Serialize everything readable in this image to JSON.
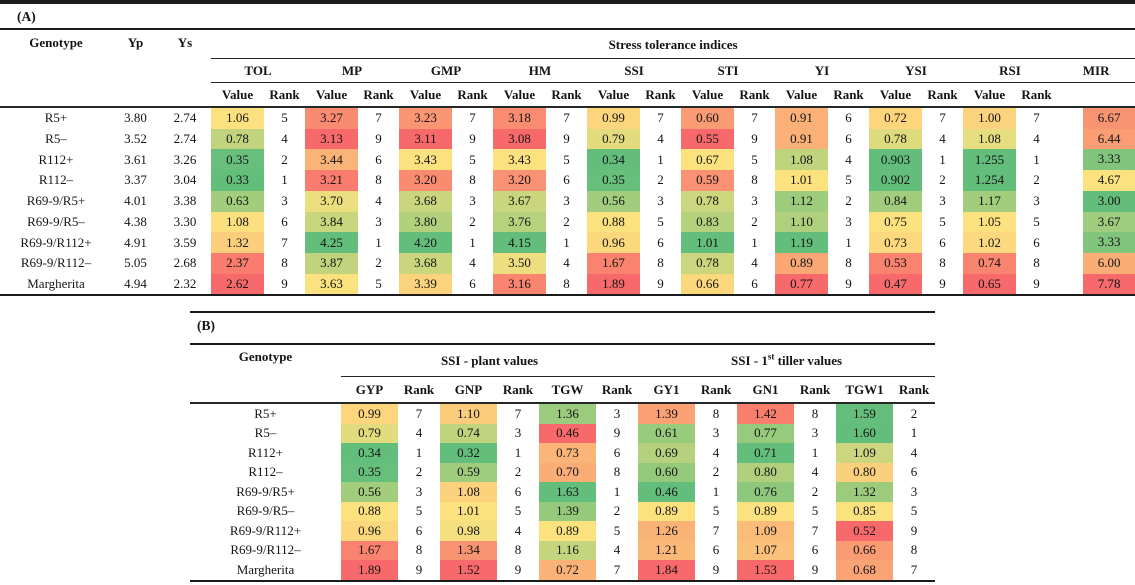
{
  "palette": {
    "good": "#63be7b",
    "mid": "#fce27f",
    "bad": "#f8696b",
    "rule": "#1b1b1b"
  },
  "panelA": {
    "label": "(A)",
    "headers": {
      "genotype": "Genotype",
      "yp": "Yp",
      "ys": "Ys",
      "span": "Stress tolerance indices",
      "value": "Value",
      "rank": "Rank"
    },
    "indices": [
      {
        "key": "TOL",
        "dir": "low"
      },
      {
        "key": "MP",
        "dir": "high"
      },
      {
        "key": "GMP",
        "dir": "high"
      },
      {
        "key": "HM",
        "dir": "high"
      },
      {
        "key": "SSI",
        "dir": "low"
      },
      {
        "key": "STI",
        "dir": "high"
      },
      {
        "key": "YI",
        "dir": "high"
      },
      {
        "key": "YSI",
        "dir": "high"
      },
      {
        "key": "RSI",
        "dir": "high"
      }
    ],
    "mir": {
      "key": "MIR",
      "dir": "low"
    },
    "rows": [
      {
        "genotype": "R5+",
        "yp": "3.80",
        "ys": "2.74",
        "vals": [
          [
            "1.06",
            "5"
          ],
          [
            "3.27",
            "7"
          ],
          [
            "3.23",
            "7"
          ],
          [
            "3.18",
            "7"
          ],
          [
            "0.99",
            "7"
          ],
          [
            "0.60",
            "7"
          ],
          [
            "0.91",
            "6"
          ],
          [
            "0.72",
            "7"
          ],
          [
            "1.00",
            "7"
          ]
        ],
        "mir": "6.67"
      },
      {
        "genotype": "R5–",
        "yp": "3.52",
        "ys": "2.74",
        "vals": [
          [
            "0.78",
            "4"
          ],
          [
            "3.13",
            "9"
          ],
          [
            "3.11",
            "9"
          ],
          [
            "3.08",
            "9"
          ],
          [
            "0.79",
            "4"
          ],
          [
            "0.55",
            "9"
          ],
          [
            "0.91",
            "6"
          ],
          [
            "0.78",
            "4"
          ],
          [
            "1.08",
            "4"
          ]
        ],
        "mir": "6.44"
      },
      {
        "genotype": "R112+",
        "yp": "3.61",
        "ys": "3.26",
        "vals": [
          [
            "0.35",
            "2"
          ],
          [
            "3.44",
            "6"
          ],
          [
            "3.43",
            "5"
          ],
          [
            "3.43",
            "5"
          ],
          [
            "0.34",
            "1"
          ],
          [
            "0.67",
            "5"
          ],
          [
            "1.08",
            "4"
          ],
          [
            "0.903",
            "1"
          ],
          [
            "1.255",
            "1"
          ]
        ],
        "mir": "3.33"
      },
      {
        "genotype": "R112–",
        "yp": "3.37",
        "ys": "3.04",
        "vals": [
          [
            "0.33",
            "1"
          ],
          [
            "3.21",
            "8"
          ],
          [
            "3.20",
            "8"
          ],
          [
            "3.20",
            "6"
          ],
          [
            "0.35",
            "2"
          ],
          [
            "0.59",
            "8"
          ],
          [
            "1.01",
            "5"
          ],
          [
            "0.902",
            "2"
          ],
          [
            "1.254",
            "2"
          ]
        ],
        "mir": "4.67"
      },
      {
        "genotype": "R69-9/R5+",
        "yp": "4.01",
        "ys": "3.38",
        "vals": [
          [
            "0.63",
            "3"
          ],
          [
            "3.70",
            "4"
          ],
          [
            "3.68",
            "3"
          ],
          [
            "3.67",
            "3"
          ],
          [
            "0.56",
            "3"
          ],
          [
            "0.78",
            "3"
          ],
          [
            "1.12",
            "2"
          ],
          [
            "0.84",
            "3"
          ],
          [
            "1.17",
            "3"
          ]
        ],
        "mir": "3.00"
      },
      {
        "genotype": "R69-9/R5–",
        "yp": "4.38",
        "ys": "3.30",
        "vals": [
          [
            "1.08",
            "6"
          ],
          [
            "3.84",
            "3"
          ],
          [
            "3.80",
            "2"
          ],
          [
            "3.76",
            "2"
          ],
          [
            "0.88",
            "5"
          ],
          [
            "0.83",
            "2"
          ],
          [
            "1.10",
            "3"
          ],
          [
            "0.75",
            "5"
          ],
          [
            "1.05",
            "5"
          ]
        ],
        "mir": "3.67"
      },
      {
        "genotype": "R69-9/R112+",
        "yp": "4.91",
        "ys": "3.59",
        "vals": [
          [
            "1.32",
            "7"
          ],
          [
            "4.25",
            "1"
          ],
          [
            "4.20",
            "1"
          ],
          [
            "4.15",
            "1"
          ],
          [
            "0.96",
            "6"
          ],
          [
            "1.01",
            "1"
          ],
          [
            "1.19",
            "1"
          ],
          [
            "0.73",
            "6"
          ],
          [
            "1.02",
            "6"
          ]
        ],
        "mir": "3.33"
      },
      {
        "genotype": "R69-9/R112–",
        "yp": "5.05",
        "ys": "2.68",
        "vals": [
          [
            "2.37",
            "8"
          ],
          [
            "3.87",
            "2"
          ],
          [
            "3.68",
            "4"
          ],
          [
            "3.50",
            "4"
          ],
          [
            "1.67",
            "8"
          ],
          [
            "0.78",
            "4"
          ],
          [
            "0.89",
            "8"
          ],
          [
            "0.53",
            "8"
          ],
          [
            "0.74",
            "8"
          ]
        ],
        "mir": "6.00"
      },
      {
        "genotype": "Margherita",
        "yp": "4.94",
        "ys": "2.32",
        "vals": [
          [
            "2.62",
            "9"
          ],
          [
            "3.63",
            "5"
          ],
          [
            "3.39",
            "6"
          ],
          [
            "3.16",
            "8"
          ],
          [
            "1.89",
            "9"
          ],
          [
            "0.66",
            "6"
          ],
          [
            "0.77",
            "9"
          ],
          [
            "0.47",
            "9"
          ],
          [
            "0.65",
            "9"
          ]
        ],
        "mir": "7.78"
      }
    ]
  },
  "panelB": {
    "label": "(B)",
    "headers": {
      "genotype": "Genotype",
      "group1": "SSI - plant values",
      "group2_pre": "SSI - 1",
      "group2_sup": "st",
      "group2_post": " tiller values",
      "rank": "Rank"
    },
    "columns": [
      {
        "key": "GYP",
        "dir": "low"
      },
      {
        "key": "GNP",
        "dir": "low"
      },
      {
        "key": "TGW",
        "dir": "high"
      },
      {
        "key": "GY1",
        "dir": "low"
      },
      {
        "key": "GN1",
        "dir": "low"
      },
      {
        "key": "TGW1",
        "dir": "high"
      }
    ],
    "rows": [
      {
        "genotype": "R5+",
        "vals": [
          [
            "0.99",
            "7"
          ],
          [
            "1.10",
            "7"
          ],
          [
            "1.36",
            "3"
          ],
          [
            "1.39",
            "8"
          ],
          [
            "1.42",
            "8"
          ],
          [
            "1.59",
            "2"
          ]
        ]
      },
      {
        "genotype": "R5–",
        "vals": [
          [
            "0.79",
            "4"
          ],
          [
            "0.74",
            "3"
          ],
          [
            "0.46",
            "9"
          ],
          [
            "0.61",
            "3"
          ],
          [
            "0.77",
            "3"
          ],
          [
            "1.60",
            "1"
          ]
        ]
      },
      {
        "genotype": "R112+",
        "vals": [
          [
            "0.34",
            "1"
          ],
          [
            "0.32",
            "1"
          ],
          [
            "0.73",
            "6"
          ],
          [
            "0.69",
            "4"
          ],
          [
            "0.71",
            "1"
          ],
          [
            "1.09",
            "4"
          ]
        ]
      },
      {
        "genotype": "R112–",
        "vals": [
          [
            "0.35",
            "2"
          ],
          [
            "0.59",
            "2"
          ],
          [
            "0.70",
            "8"
          ],
          [
            "0.60",
            "2"
          ],
          [
            "0.80",
            "4"
          ],
          [
            "0.80",
            "6"
          ]
        ]
      },
      {
        "genotype": "R69-9/R5+",
        "vals": [
          [
            "0.56",
            "3"
          ],
          [
            "1.08",
            "6"
          ],
          [
            "1.63",
            "1"
          ],
          [
            "0.46",
            "1"
          ],
          [
            "0.76",
            "2"
          ],
          [
            "1.32",
            "3"
          ]
        ]
      },
      {
        "genotype": "R69-9/R5–",
        "vals": [
          [
            "0.88",
            "5"
          ],
          [
            "1.01",
            "5"
          ],
          [
            "1.39",
            "2"
          ],
          [
            "0.89",
            "5"
          ],
          [
            "0.89",
            "5"
          ],
          [
            "0.85",
            "5"
          ]
        ]
      },
      {
        "genotype": "R69-9/R112+",
        "vals": [
          [
            "0.96",
            "6"
          ],
          [
            "0.98",
            "4"
          ],
          [
            "0.89",
            "5"
          ],
          [
            "1.26",
            "7"
          ],
          [
            "1.09",
            "7"
          ],
          [
            "0.52",
            "9"
          ]
        ]
      },
      {
        "genotype": "R69-9/R112–",
        "vals": [
          [
            "1.67",
            "8"
          ],
          [
            "1.34",
            "8"
          ],
          [
            "1.16",
            "4"
          ],
          [
            "1.21",
            "6"
          ],
          [
            "1.07",
            "6"
          ],
          [
            "0.66",
            "8"
          ]
        ]
      },
      {
        "genotype": "Margherita",
        "vals": [
          [
            "1.89",
            "9"
          ],
          [
            "1.52",
            "9"
          ],
          [
            "0.72",
            "7"
          ],
          [
            "1.84",
            "9"
          ],
          [
            "1.53",
            "9"
          ],
          [
            "0.68",
            "7"
          ]
        ]
      }
    ]
  }
}
